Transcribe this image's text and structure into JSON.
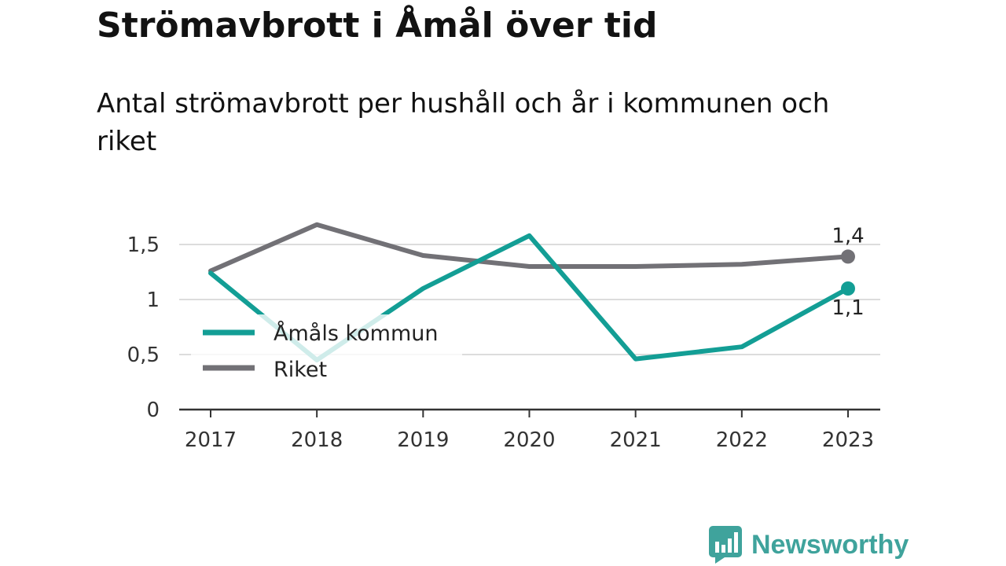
{
  "header": {
    "title": "Strömavbrott i Åmål över tid",
    "subtitle": "Antal strömavbrott per hushåll och år i kommunen och riket"
  },
  "branding": {
    "logo_text": "Newsworthy",
    "logo_icon": "bar-chart-speech-bubble-icon",
    "color": "#3fa39c"
  },
  "chart_data": {
    "type": "line",
    "title": "Strömavbrott i Åmål över tid",
    "subtitle": "Antal strömavbrott per hushåll och år i kommunen och riket",
    "xlabel": "",
    "ylabel": "",
    "x": [
      "2017",
      "2018",
      "2019",
      "2020",
      "2021",
      "2022",
      "2023"
    ],
    "ylim": [
      0,
      1.75
    ],
    "yticks": [
      0,
      0.5,
      1,
      1.5
    ],
    "ytick_labels": [
      "0",
      "0,5",
      "1",
      "1,5"
    ],
    "grid": true,
    "legend_placement": "center-left",
    "series": [
      {
        "name": "Åmåls kommun",
        "color": "#139e95",
        "values": [
          1.24,
          0.45,
          1.1,
          1.58,
          0.46,
          0.57,
          1.1
        ],
        "end_label": "1,1"
      },
      {
        "name": "Riket",
        "color": "#727176",
        "values": [
          1.26,
          1.68,
          1.4,
          1.3,
          1.3,
          1.32,
          1.39
        ],
        "end_label": "1,4"
      }
    ]
  }
}
